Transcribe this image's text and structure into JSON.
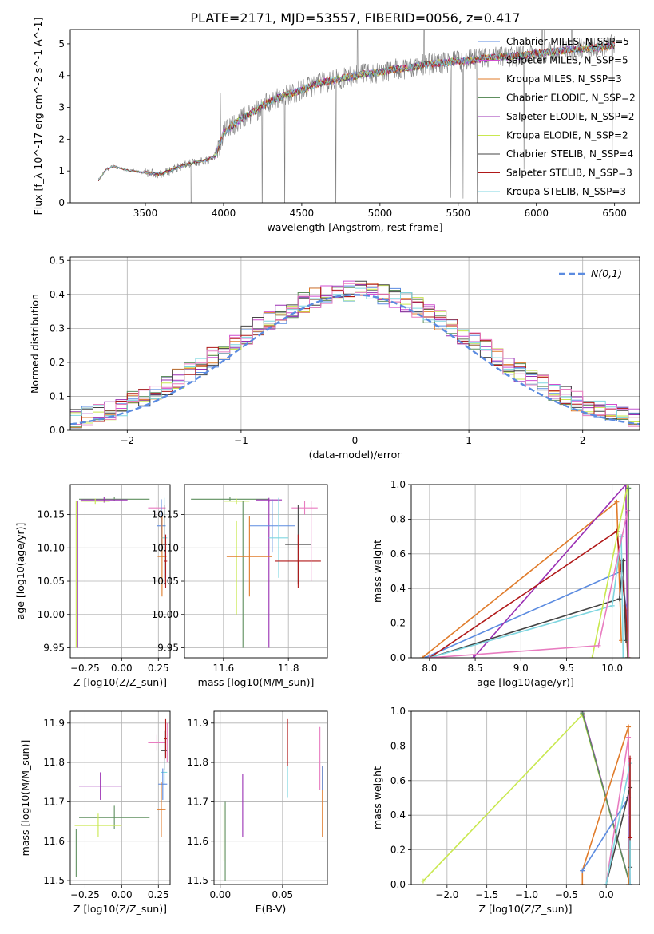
{
  "figure": {
    "title": "PLATE=2171, MJD=53557, FIBERID=0056, z=0.417"
  },
  "colors": {
    "chabrier_miles": "#5b8be0",
    "salpeter_miles": "#d14fd1",
    "kroupa_miles": "#e07b2a",
    "chabrier_elodie": "#5e8f5e",
    "salpeter_elodie": "#9a2fb3",
    "kroupa_elodie": "#c9e84f",
    "chabrier_stelib": "#444444",
    "salpeter_stelib": "#b01818",
    "kroupa_stelib": "#7fd6e0",
    "pink": "#e87cc0",
    "data_gray": "#808080",
    "gauss": "#5b8be0",
    "grid": "#b0b0b0"
  },
  "chart_data": [
    {
      "id": "spectrum",
      "type": "line",
      "xlabel": "wavelength [Angstrom, rest frame]",
      "ylabel": "Flux [f_λ 10^-17 erg cm^-2 s^-1 A^-1]",
      "xlim": [
        3020,
        6660
      ],
      "ylim": [
        0,
        5.45
      ],
      "xticks": [
        3500,
        4000,
        4500,
        5000,
        5500,
        6000,
        6500
      ],
      "yticks": [
        0,
        1,
        2,
        3,
        4,
        5
      ],
      "grid": false,
      "legend_position": "right",
      "series": [
        {
          "name": "Chabrier MILES, N_SSP=5",
          "color_key": "chabrier_miles"
        },
        {
          "name": "Salpeter MILES, N_SSP=5",
          "color_key": "salpeter_miles"
        },
        {
          "name": "Kroupa MILES, N_SSP=3",
          "color_key": "kroupa_miles"
        },
        {
          "name": "Chabrier ELODIE, N_SSP=2",
          "color_key": "chabrier_elodie"
        },
        {
          "name": "Salpeter ELODIE, N_SSP=2",
          "color_key": "salpeter_elodie"
        },
        {
          "name": "Kroupa ELODIE, N_SSP=2",
          "color_key": "kroupa_elodie"
        },
        {
          "name": "Chabrier STELIB, N_SSP=4",
          "color_key": "chabrier_stelib"
        },
        {
          "name": "Salpeter STELIB, N_SSP=3",
          "color_key": "salpeter_stelib"
        },
        {
          "name": "Kroupa STELIB, N_SSP=3",
          "color_key": "kroupa_stelib"
        }
      ],
      "continuum": {
        "x": [
          3200,
          3250,
          3300,
          3400,
          3500,
          3600,
          3700,
          3800,
          3900,
          3950,
          4000,
          4100,
          4200,
          4300,
          4400,
          4500,
          4600,
          4700,
          4800,
          4900,
          5000,
          5100,
          5200,
          5300,
          5400,
          5500,
          5600,
          5700,
          5800,
          5900,
          6000,
          6100,
          6200,
          6300,
          6400,
          6500
        ],
        "y": [
          0.7,
          1.05,
          1.15,
          1.0,
          0.95,
          0.9,
          1.1,
          1.25,
          1.35,
          1.5,
          2.2,
          2.6,
          2.9,
          3.2,
          3.4,
          3.55,
          3.75,
          3.85,
          3.95,
          4.05,
          4.1,
          4.2,
          4.25,
          4.35,
          4.4,
          4.45,
          4.5,
          4.55,
          4.6,
          4.62,
          4.7,
          4.75,
          4.8,
          4.85,
          4.88,
          4.95
        ]
      }
    },
    {
      "id": "residuals",
      "type": "line",
      "xlabel": "(data-model)/error",
      "ylabel": "Normed distribution",
      "xlim": [
        -2.5,
        2.5
      ],
      "ylim": [
        0,
        0.51
      ],
      "xticks": [
        -2,
        -1,
        0,
        1,
        2
      ],
      "yticks": [
        0.0,
        0.1,
        0.2,
        0.3,
        0.4,
        0.5
      ],
      "grid": true,
      "legend_position": "upper right",
      "legend": "N(0,1)",
      "gauss_mu": 0,
      "gauss_sigma": 1
    },
    {
      "id": "age_vs_Z",
      "type": "scatter",
      "xlabel": "Z [log10(Z/Z_sun)]",
      "ylabel": "age [log10(age/yr)]",
      "xlim": [
        -0.35,
        0.33
      ],
      "ylim": [
        9.935,
        10.195
      ],
      "xticks": [
        -0.25,
        0.0,
        0.25
      ],
      "yticks": [
        9.95,
        10.0,
        10.05,
        10.1,
        10.15
      ],
      "grid": true,
      "points": [
        {
          "x": -0.05,
          "y": 10.173,
          "xerr": 0.24,
          "yerr": 0.003,
          "c": "chabrier_elodie"
        },
        {
          "x": -0.12,
          "y": 10.172,
          "xerr": 0.16,
          "yerr": 0.004,
          "c": "salpeter_elodie"
        },
        {
          "x": -0.18,
          "y": 10.17,
          "xerr": 0.1,
          "yerr": 0.004,
          "c": "kroupa_elodie"
        },
        {
          "x": -0.3,
          "y": 10.06,
          "xerr": 0.0,
          "yerr": 0.11,
          "c": "salpeter_elodie"
        },
        {
          "x": -0.31,
          "y": 10.06,
          "xerr": 0.0,
          "yerr": 0.11,
          "c": "kroupa_elodie"
        },
        {
          "x": 0.24,
          "y": 10.16,
          "xerr": 0.06,
          "yerr": 0.01,
          "c": "pink"
        },
        {
          "x": 0.27,
          "y": 10.133,
          "xerr": 0.03,
          "yerr": 0.04,
          "c": "chabrier_miles"
        },
        {
          "x": 0.29,
          "y": 10.115,
          "xerr": 0.02,
          "yerr": 0.06,
          "c": "kroupa_stelib"
        },
        {
          "x": 0.29,
          "y": 10.105,
          "xerr": 0.02,
          "yerr": 0.06,
          "c": "chabrier_stelib"
        },
        {
          "x": 0.275,
          "y": 10.087,
          "xerr": 0.03,
          "yerr": 0.06,
          "c": "kroupa_miles"
        },
        {
          "x": 0.3,
          "y": 10.08,
          "xerr": 0.01,
          "yerr": 0.04,
          "c": "salpeter_stelib"
        }
      ]
    },
    {
      "id": "age_vs_mass",
      "type": "scatter",
      "xlabel": "mass [log10(M/M_sun)]",
      "ylabel": "",
      "xlim": [
        11.48,
        11.92
      ],
      "ylim": [
        9.935,
        10.195
      ],
      "xticks": [
        11.6,
        11.8
      ],
      "yticks": [
        9.95,
        10.0,
        10.05,
        10.1,
        10.15
      ],
      "grid": true,
      "points": [
        {
          "x": 11.62,
          "y": 10.173,
          "xerr": 0.12,
          "yerr": 0.003,
          "c": "chabrier_elodie"
        },
        {
          "x": 11.74,
          "y": 10.172,
          "xerr": 0.04,
          "yerr": 0.003,
          "c": "salpeter_elodie"
        },
        {
          "x": 11.64,
          "y": 10.17,
          "xerr": 0.04,
          "yerr": 0.004,
          "c": "kroupa_elodie"
        },
        {
          "x": 11.66,
          "y": 10.06,
          "xerr": 0.0,
          "yerr": 0.11,
          "c": "chabrier_elodie"
        },
        {
          "x": 11.74,
          "y": 10.06,
          "xerr": 0.0,
          "yerr": 0.11,
          "c": "salpeter_elodie"
        },
        {
          "x": 11.64,
          "y": 10.07,
          "xerr": 0.0,
          "yerr": 0.07,
          "c": "kroupa_elodie"
        },
        {
          "x": 11.85,
          "y": 10.16,
          "xerr": 0.04,
          "yerr": 0.01,
          "c": "pink"
        },
        {
          "x": 11.75,
          "y": 10.133,
          "xerr": 0.07,
          "yerr": 0.04,
          "c": "chabrier_miles"
        },
        {
          "x": 11.77,
          "y": 10.115,
          "xerr": 0.03,
          "yerr": 0.06,
          "c": "kroupa_stelib"
        },
        {
          "x": 11.83,
          "y": 10.105,
          "xerr": 0.04,
          "yerr": 0.06,
          "c": "chabrier_stelib"
        },
        {
          "x": 11.68,
          "y": 10.087,
          "xerr": 0.07,
          "yerr": 0.06,
          "c": "kroupa_miles"
        },
        {
          "x": 11.83,
          "y": 10.08,
          "xerr": 0.07,
          "yerr": 0.04,
          "c": "salpeter_stelib"
        },
        {
          "x": 11.87,
          "y": 10.11,
          "xerr": 0.0,
          "yerr": 0.06,
          "c": "pink"
        }
      ]
    },
    {
      "id": "weight_vs_age",
      "type": "line",
      "xlabel": "age [log10(age/yr)]",
      "ylabel": "mass weight",
      "xlim": [
        7.8,
        10.3
      ],
      "ylim": [
        0,
        1.0
      ],
      "xticks": [
        8.0,
        8.5,
        9.0,
        9.5,
        10.0
      ],
      "yticks": [
        0.0,
        0.2,
        0.4,
        0.6,
        0.8,
        1.0
      ],
      "grid": true,
      "series": [
        {
          "c": "chabrier_miles",
          "x": [
            7.95,
            10.1,
            10.15
          ],
          "y": [
            0.0,
            0.5,
            0.3
          ]
        },
        {
          "c": "kroupa_miles",
          "x": [
            7.92,
            10.05,
            10.1
          ],
          "y": [
            0.0,
            0.9,
            0.1
          ]
        },
        {
          "c": "salpeter_elodie",
          "x": [
            8.48,
            10.15,
            10.17
          ],
          "y": [
            0.0,
            1.0,
            0.0
          ]
        },
        {
          "c": "salpeter_stelib",
          "x": [
            8.0,
            10.05,
            10.15,
            10.17
          ],
          "y": [
            0.0,
            0.73,
            0.27,
            0.0
          ]
        },
        {
          "c": "chabrier_stelib",
          "x": [
            8.0,
            10.08,
            10.12,
            10.15
          ],
          "y": [
            0.0,
            0.34,
            0.56,
            0.1
          ]
        },
        {
          "c": "kroupa_stelib",
          "x": [
            8.0,
            10.0,
            10.1,
            10.12
          ],
          "y": [
            0.0,
            0.3,
            0.7,
            0.0
          ]
        },
        {
          "c": "kroupa_elodie",
          "x": [
            9.78,
            10.17,
            10.18
          ],
          "y": [
            0.0,
            1.0,
            0.0
          ]
        },
        {
          "c": "pink",
          "x": [
            8.0,
            9.85,
            10.17,
            10.18
          ],
          "y": [
            0.0,
            0.07,
            0.85,
            0.0
          ]
        },
        {
          "c": "chabrier_elodie",
          "x": [
            10.17,
            10.18
          ],
          "y": [
            0.0,
            0.98
          ]
        }
      ]
    },
    {
      "id": "mass_vs_Z",
      "type": "scatter",
      "xlabel": "Z [log10(Z/Z_sun)]",
      "ylabel": "mass [log10(M/M_sun)]",
      "xlim": [
        -0.35,
        0.33
      ],
      "ylim": [
        11.49,
        11.93
      ],
      "xticks": [
        -0.25,
        0.0,
        0.25
      ],
      "yticks": [
        11.5,
        11.6,
        11.7,
        11.8,
        11.9
      ],
      "grid": true,
      "points": [
        {
          "x": -0.145,
          "y": 11.74,
          "xerr": 0.145,
          "yerr": 0.035,
          "c": "salpeter_elodie"
        },
        {
          "x": -0.05,
          "y": 11.66,
          "xerr": 0.24,
          "yerr": 0.03,
          "c": "chabrier_elodie"
        },
        {
          "x": -0.16,
          "y": 11.64,
          "xerr": 0.16,
          "yerr": 0.03,
          "c": "kroupa_elodie"
        },
        {
          "x": -0.31,
          "y": 11.57,
          "xerr": 0.0,
          "yerr": 0.06,
          "c": "chabrier_elodie"
        },
        {
          "x": 0.24,
          "y": 11.85,
          "xerr": 0.06,
          "yerr": 0.02,
          "c": "pink"
        },
        {
          "x": 0.29,
          "y": 11.83,
          "xerr": 0.02,
          "yerr": 0.05,
          "c": "chabrier_stelib"
        },
        {
          "x": 0.3,
          "y": 11.86,
          "xerr": 0.01,
          "yerr": 0.05,
          "c": "salpeter_stelib"
        },
        {
          "x": 0.29,
          "y": 11.775,
          "xerr": 0.02,
          "yerr": 0.03,
          "c": "kroupa_stelib"
        },
        {
          "x": 0.28,
          "y": 11.745,
          "xerr": 0.03,
          "yerr": 0.04,
          "c": "chabrier_miles"
        },
        {
          "x": 0.27,
          "y": 11.68,
          "xerr": 0.03,
          "yerr": 0.07,
          "c": "kroupa_miles"
        },
        {
          "x": 0.31,
          "y": 11.85,
          "xerr": 0.0,
          "yerr": 0.05,
          "c": "pink"
        }
      ]
    },
    {
      "id": "mass_vs_ebv",
      "type": "scatter",
      "xlabel": "E(B-V)",
      "ylabel": "",
      "xlim": [
        -0.005,
        0.086
      ],
      "ylim": [
        11.49,
        11.93
      ],
      "xticks": [
        0.0,
        0.05
      ],
      "yticks": [
        11.5,
        11.6,
        11.7,
        11.8,
        11.9
      ],
      "grid": true,
      "points": [
        {
          "x": 0.003,
          "y": 11.62,
          "xerr": 0.0,
          "yerr": 0.07,
          "c": "kroupa_elodie"
        },
        {
          "x": 0.004,
          "y": 11.6,
          "xerr": 0.0,
          "yerr": 0.1,
          "c": "chabrier_elodie"
        },
        {
          "x": 0.018,
          "y": 11.69,
          "xerr": 0.0,
          "yerr": 0.08,
          "c": "salpeter_elodie"
        },
        {
          "x": 0.054,
          "y": 11.85,
          "xerr": 0.0,
          "yerr": 0.06,
          "c": "salpeter_stelib"
        },
        {
          "x": 0.054,
          "y": 11.75,
          "xerr": 0.0,
          "yerr": 0.04,
          "c": "kroupa_stelib"
        },
        {
          "x": 0.08,
          "y": 11.81,
          "xerr": 0.0,
          "yerr": 0.08,
          "c": "pink"
        },
        {
          "x": 0.082,
          "y": 11.7,
          "xerr": 0.0,
          "yerr": 0.09,
          "c": "kroupa_miles"
        },
        {
          "x": 0.082,
          "y": 11.76,
          "xerr": 0.0,
          "yerr": 0.03,
          "c": "chabrier_miles"
        }
      ]
    },
    {
      "id": "weight_vs_Z",
      "type": "line",
      "xlabel": "Z [log10(Z/Z_sun)]",
      "ylabel": "mass weight",
      "xlim": [
        -2.45,
        0.42
      ],
      "ylim": [
        0,
        1.0
      ],
      "xticks": [
        -2.0,
        -1.5,
        -1.0,
        -0.5,
        0.0
      ],
      "yticks": [
        0.0,
        0.2,
        0.4,
        0.6,
        0.8,
        1.0
      ],
      "grid": true,
      "series": [
        {
          "c": "kroupa_elodie",
          "x": [
            -2.3,
            -0.3,
            0.3
          ],
          "y": [
            0.02,
            0.98,
            0.0
          ]
        },
        {
          "c": "salpeter_elodie",
          "x": [
            -0.3,
            0.3
          ],
          "y": [
            1.0,
            0.0
          ]
        },
        {
          "c": "chabrier_elodie",
          "x": [
            -0.3,
            0.3
          ],
          "y": [
            0.99,
            0.0
          ]
        },
        {
          "c": "kroupa_miles",
          "x": [
            -0.3,
            -0.3,
            0.28,
            0.28
          ],
          "y": [
            0.0,
            0.08,
            0.91,
            0.0
          ]
        },
        {
          "c": "chabrier_miles",
          "x": [
            -0.3,
            0.28,
            0.3
          ],
          "y": [
            0.08,
            0.5,
            0.0
          ]
        },
        {
          "c": "pink",
          "x": [
            0.0,
            0.28,
            0.3
          ],
          "y": [
            0.0,
            0.85,
            0.0
          ]
        },
        {
          "c": "chabrier_stelib",
          "x": [
            0.0,
            0.3,
            0.3
          ],
          "y": [
            0.0,
            0.56,
            0.1
          ]
        },
        {
          "c": "kroupa_stelib",
          "x": [
            0.0,
            0.3,
            0.3
          ],
          "y": [
            0.0,
            0.7,
            0.0
          ]
        },
        {
          "c": "salpeter_stelib",
          "x": [
            0.3,
            0.3
          ],
          "y": [
            0.27,
            0.73
          ]
        }
      ]
    }
  ]
}
